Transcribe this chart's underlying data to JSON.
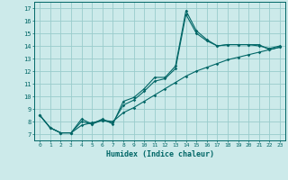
{
  "xlabel": "Humidex (Indice chaleur)",
  "bg_color": "#cceaea",
  "grid_color": "#99cccc",
  "line_color": "#006666",
  "xlim": [
    -0.5,
    23.5
  ],
  "ylim": [
    6.5,
    17.5
  ],
  "xticks": [
    0,
    1,
    2,
    3,
    4,
    5,
    6,
    7,
    8,
    9,
    10,
    11,
    12,
    13,
    14,
    15,
    16,
    17,
    18,
    19,
    20,
    21,
    22,
    23
  ],
  "yticks": [
    7,
    8,
    9,
    10,
    11,
    12,
    13,
    14,
    15,
    16,
    17
  ],
  "line1_x": [
    0,
    1,
    2,
    3,
    4,
    5,
    6,
    7,
    8,
    9,
    10,
    11,
    12,
    13,
    14,
    15,
    16,
    17,
    18,
    19,
    20,
    21,
    22,
    23
  ],
  "line1_y": [
    8.5,
    7.5,
    7.1,
    7.1,
    8.2,
    7.8,
    8.2,
    7.8,
    9.6,
    9.9,
    10.6,
    11.5,
    11.5,
    12.4,
    16.8,
    15.2,
    14.5,
    14.0,
    14.1,
    14.1,
    14.1,
    14.1,
    13.7,
    13.9
  ],
  "line2_x": [
    0,
    1,
    2,
    3,
    4,
    5,
    6,
    7,
    8,
    9,
    10,
    11,
    12,
    13,
    14,
    15,
    16,
    17,
    18,
    19,
    20,
    21,
    22,
    23
  ],
  "line2_y": [
    8.5,
    7.5,
    7.1,
    7.1,
    7.7,
    7.9,
    8.1,
    8.0,
    8.7,
    9.1,
    9.6,
    10.1,
    10.6,
    11.1,
    11.6,
    12.0,
    12.3,
    12.6,
    12.9,
    13.1,
    13.3,
    13.5,
    13.7,
    13.9
  ],
  "line3_x": [
    0,
    1,
    2,
    3,
    4,
    5,
    6,
    7,
    8,
    9,
    10,
    11,
    12,
    13,
    14,
    15,
    16,
    17,
    18,
    19,
    20,
    21,
    22,
    23
  ],
  "line3_y": [
    8.5,
    7.5,
    7.1,
    7.1,
    8.0,
    7.8,
    8.1,
    7.9,
    9.3,
    9.7,
    10.4,
    11.2,
    11.4,
    12.2,
    16.5,
    15.0,
    14.4,
    14.0,
    14.1,
    14.1,
    14.1,
    14.0,
    13.8,
    14.0
  ]
}
